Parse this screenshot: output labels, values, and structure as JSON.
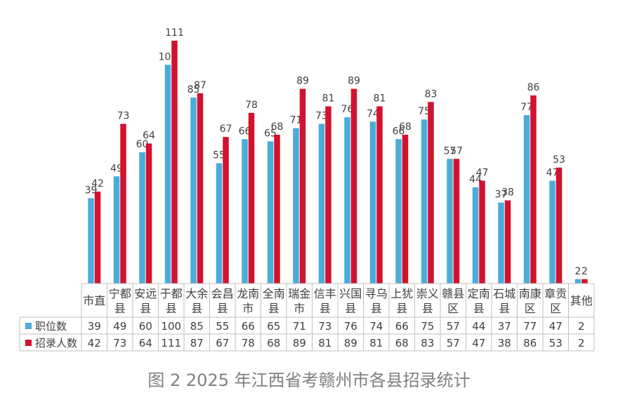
{
  "caption": "图 2 2025 年江西省考赣州市各县招录统计",
  "chart_data": {
    "type": "bar",
    "categories": [
      "市直",
      "宁都县",
      "安远县",
      "于都县",
      "大余县",
      "会昌县",
      "龙南市",
      "全南县",
      "瑞金市",
      "信丰县",
      "兴国县",
      "寻乌县",
      "上犹县",
      "崇义县",
      "赣县区",
      "定南县",
      "石城县",
      "南康区",
      "章贡区",
      "其他"
    ],
    "series": [
      {
        "name": "职位数",
        "color": "#4bacd9",
        "values": [
          39,
          49,
          60,
          100,
          85,
          55,
          66,
          65,
          71,
          73,
          76,
          74,
          66,
          75,
          57,
          44,
          37,
          77,
          47,
          2
        ]
      },
      {
        "name": "招录人数",
        "color": "#d2122e",
        "values": [
          42,
          73,
          64,
          111,
          87,
          67,
          78,
          68,
          89,
          81,
          89,
          81,
          68,
          83,
          57,
          47,
          38,
          86,
          53,
          2
        ]
      }
    ],
    "ylim": [
      0,
      111
    ],
    "grid": false,
    "legend": "data-table"
  }
}
